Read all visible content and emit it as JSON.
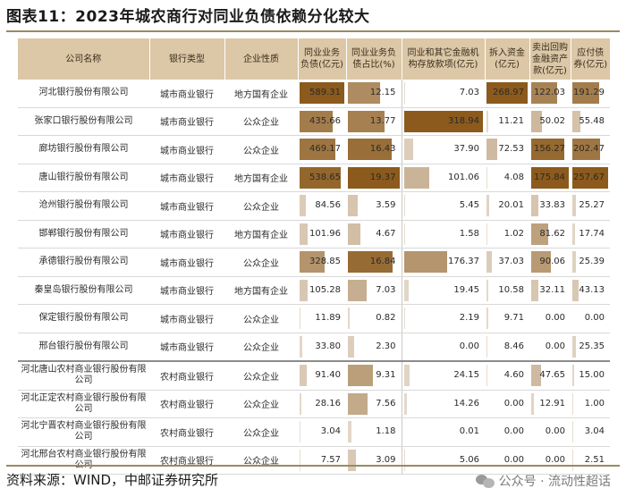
{
  "title": "图表11：2023年城农商行对同业负债依赖分化较大",
  "colors": {
    "header_bg": "#dcc7a6",
    "bar": "#8b5a1c",
    "rule": "#9a8a60"
  },
  "headers": {
    "company": "公司名称",
    "bank_type": "银行类型",
    "nature": "企业性质",
    "interbank_liab": "同业业务负债(亿元)",
    "interbank_ratio": "同业业务负债占比(%)",
    "interbank_deposits": "同业和其它金融机构存放款项(亿元)",
    "borrowed_funds": "拆入资金(亿元)",
    "repo": "卖出回购金融资产款(亿元)",
    "bonds": "应付债券(亿元)"
  },
  "bar_max": {
    "interbank_liab": 589.31,
    "interbank_ratio": 19.37,
    "interbank_deposits": 318.94,
    "borrowed_funds": 268.97,
    "repo": 175.84,
    "bonds": 257.67
  },
  "rows": [
    {
      "company": "河北银行股份有限公司",
      "bank_type": "城市商业银行",
      "nature": "地方国有企业",
      "interbank_liab": "589.31",
      "interbank_ratio": "12.15",
      "interbank_deposits": "7.03",
      "borrowed_funds": "268.97",
      "repo": "122.03",
      "bonds": "191.29"
    },
    {
      "company": "张家口银行股份有限公司",
      "bank_type": "城市商业银行",
      "nature": "公众企业",
      "interbank_liab": "435.66",
      "interbank_ratio": "13.77",
      "interbank_deposits": "318.94",
      "borrowed_funds": "11.21",
      "repo": "50.02",
      "bonds": "55.48"
    },
    {
      "company": "廊坊银行股份有限公司",
      "bank_type": "城市商业银行",
      "nature": "公众企业",
      "interbank_liab": "469.17",
      "interbank_ratio": "16.43",
      "interbank_deposits": "37.90",
      "borrowed_funds": "72.53",
      "repo": "156.27",
      "bonds": "202.47"
    },
    {
      "company": "唐山银行股份有限公司",
      "bank_type": "城市商业银行",
      "nature": "地方国有企业",
      "interbank_liab": "538.65",
      "interbank_ratio": "19.37",
      "interbank_deposits": "101.06",
      "borrowed_funds": "4.08",
      "repo": "175.84",
      "bonds": "257.67"
    },
    {
      "company": "沧州银行股份有限公司",
      "bank_type": "城市商业银行",
      "nature": "公众企业",
      "interbank_liab": "84.56",
      "interbank_ratio": "3.59",
      "interbank_deposits": "5.45",
      "borrowed_funds": "20.01",
      "repo": "33.83",
      "bonds": "25.27"
    },
    {
      "company": "邯郸银行股份有限公司",
      "bank_type": "城市商业银行",
      "nature": "地方国有企业",
      "interbank_liab": "101.96",
      "interbank_ratio": "4.67",
      "interbank_deposits": "1.58",
      "borrowed_funds": "1.02",
      "repo": "81.62",
      "bonds": "17.74"
    },
    {
      "company": "承德银行股份有限公司",
      "bank_type": "城市商业银行",
      "nature": "公众企业",
      "interbank_liab": "328.85",
      "interbank_ratio": "16.84",
      "interbank_deposits": "176.37",
      "borrowed_funds": "37.03",
      "repo": "90.06",
      "bonds": "25.39"
    },
    {
      "company": "秦皇岛银行股份有限公司",
      "bank_type": "城市商业银行",
      "nature": "地方国有企业",
      "interbank_liab": "105.28",
      "interbank_ratio": "7.03",
      "interbank_deposits": "19.45",
      "borrowed_funds": "10.58",
      "repo": "32.11",
      "bonds": "43.13"
    },
    {
      "company": "保定银行股份有限公司",
      "bank_type": "城市商业银行",
      "nature": "公众企业",
      "interbank_liab": "11.89",
      "interbank_ratio": "0.82",
      "interbank_deposits": "2.19",
      "borrowed_funds": "9.71",
      "repo": "0.00",
      "bonds": "0.00"
    },
    {
      "company": "邢台银行股份有限公司",
      "bank_type": "城市商业银行",
      "nature": "公众企业",
      "interbank_liab": "33.80",
      "interbank_ratio": "2.30",
      "interbank_deposits": "0.00",
      "borrowed_funds": "8.46",
      "repo": "0.00",
      "bonds": "25.35"
    },
    {
      "company": "河北唐山农村商业银行股份有限公司",
      "bank_type": "农村商业银行",
      "nature": "公众企业",
      "interbank_liab": "91.40",
      "interbank_ratio": "9.31",
      "interbank_deposits": "24.15",
      "borrowed_funds": "4.60",
      "repo": "47.65",
      "bonds": "15.00"
    },
    {
      "company": "河北正定农村商业银行股份有限公司",
      "bank_type": "农村商业银行",
      "nature": "公众企业",
      "interbank_liab": "28.16",
      "interbank_ratio": "7.56",
      "interbank_deposits": "14.26",
      "borrowed_funds": "0.00",
      "repo": "12.91",
      "bonds": "1.00"
    },
    {
      "company": "河北宁晋农村商业银行股份有限公司",
      "bank_type": "农村商业银行",
      "nature": "公众企业",
      "interbank_liab": "3.04",
      "interbank_ratio": "1.18",
      "interbank_deposits": "0.01",
      "borrowed_funds": "0.00",
      "repo": "0.00",
      "bonds": "3.04"
    },
    {
      "company": "河北邢台农村商业银行股份有限公司",
      "bank_type": "农村商业银行",
      "nature": "公众企业",
      "interbank_liab": "7.57",
      "interbank_ratio": "3.09",
      "interbank_deposits": "5.06",
      "borrowed_funds": "0.00",
      "repo": "0.00",
      "bonds": "2.51"
    }
  ],
  "source": "资料来源：WIND，中邮证券研究所",
  "watermark": "公众号 · 流动性超话",
  "watermark_icon": "wechat-icon"
}
